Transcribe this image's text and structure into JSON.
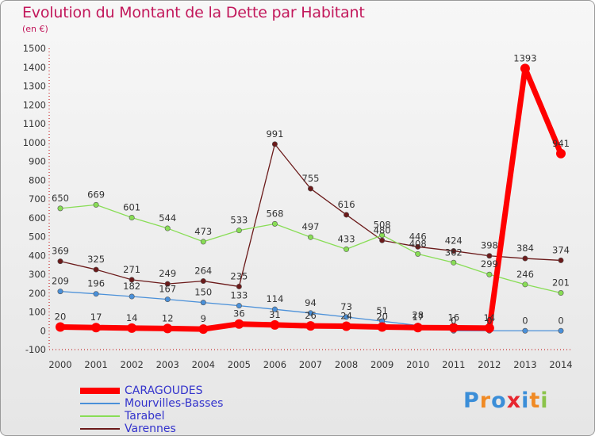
{
  "title": "Evolution du Montant de la Dette par Habitant",
  "unit_label": "(en €)",
  "logo_text": "Proxiti",
  "chart_data": {
    "type": "line",
    "x": [
      "2000",
      "2001",
      "2002",
      "2003",
      "2004",
      "2005",
      "2006",
      "2007",
      "2008",
      "2009",
      "2010",
      "2011",
      "2012",
      "2013",
      "2014"
    ],
    "ylim": [
      -100,
      1500
    ],
    "yticks": [
      -100,
      0,
      100,
      200,
      300,
      400,
      500,
      600,
      700,
      800,
      900,
      1000,
      1100,
      1200,
      1300,
      1400,
      1500
    ],
    "grid": false,
    "legend_position": "bottom-left",
    "series": [
      {
        "name": "Varennes",
        "color": "#6b1a1a",
        "values": [
          369,
          325,
          271,
          249,
          264,
          235,
          991,
          755,
          616,
          480,
          446,
          424,
          398,
          384,
          374
        ]
      },
      {
        "name": "Tarabel",
        "color": "#88dd55",
        "values": [
          650,
          669,
          601,
          544,
          473,
          533,
          568,
          497,
          433,
          508,
          408,
          362,
          299,
          246,
          201
        ]
      },
      {
        "name": "Mourvilles-Basses",
        "color": "#4a90d9",
        "values": [
          209,
          196,
          182,
          167,
          150,
          133,
          114,
          94,
          73,
          51,
          28,
          0,
          0,
          0,
          0
        ]
      },
      {
        "name": "CARAGOUDES",
        "color": "#ff0000",
        "values": [
          20,
          17,
          14,
          12,
          9,
          36,
          31,
          26,
          24,
          20,
          17,
          16,
          14,
          1393,
          941
        ]
      }
    ]
  }
}
